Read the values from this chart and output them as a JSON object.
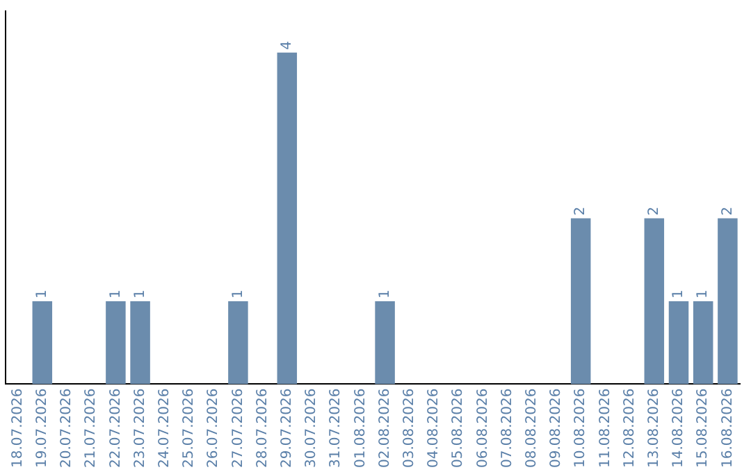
{
  "chart_data": {
    "type": "bar",
    "categories": [
      "18.07.2026",
      "19.07.2026",
      "20.07.2026",
      "21.07.2026",
      "22.07.2026",
      "23.07.2026",
      "24.07.2026",
      "25.07.2026",
      "26.07.2026",
      "27.07.2026",
      "28.07.2026",
      "29.07.2026",
      "30.07.2026",
      "31.07.2026",
      "01.08.2026",
      "02.08.2026",
      "03.08.2026",
      "04.08.2026",
      "05.08.2026",
      "06.08.2026",
      "07.08.2026",
      "08.08.2026",
      "09.08.2026",
      "10.08.2026",
      "11.08.2026",
      "12.08.2026",
      "13.08.2026",
      "14.08.2026",
      "15.08.2026",
      "16.08.2026"
    ],
    "values": [
      0,
      1,
      0,
      0,
      1,
      1,
      0,
      0,
      0,
      1,
      0,
      4,
      0,
      0,
      0,
      1,
      0,
      0,
      0,
      0,
      0,
      0,
      0,
      2,
      0,
      0,
      2,
      1,
      1,
      2
    ],
    "value_labels": [
      null,
      "1",
      null,
      null,
      "1",
      "1",
      null,
      null,
      null,
      "1",
      null,
      "4",
      null,
      null,
      null,
      "1",
      null,
      null,
      null,
      null,
      null,
      null,
      null,
      "2",
      null,
      null,
      "2",
      "1",
      "1",
      "2"
    ],
    "color": "#6b8cad",
    "tick_labels": "x",
    "grid": false,
    "legend": false
  }
}
